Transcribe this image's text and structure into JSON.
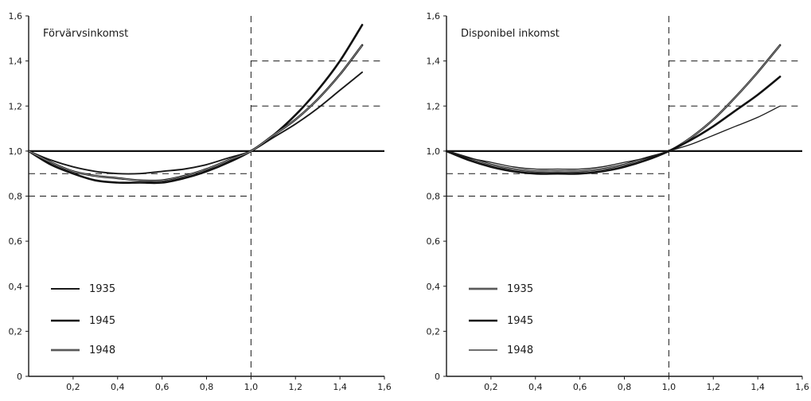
{
  "chart_data": [
    {
      "type": "line",
      "title": "Förvärvsinkomst",
      "xlim": [
        0,
        1.6
      ],
      "ylim": [
        0,
        1.6
      ],
      "x_ticks": [
        "0,2",
        "0,4",
        "0,6",
        "0,8",
        "1,0",
        "1,2",
        "1,4",
        "1,6"
      ],
      "y_ticks": [
        "0",
        "0,2",
        "0,4",
        "0,6",
        "0,8",
        "1,0",
        "1,2",
        "1,4",
        "1,6"
      ],
      "grid": false,
      "reference_lines": {
        "horizontal_solid": 1.0,
        "vertical_dashed": 1.0,
        "dashed_left": [
          0.8,
          0.9
        ],
        "dashed_right": [
          1.2,
          1.4
        ]
      },
      "legend_position": "bottom-left",
      "series": [
        {
          "name": "1935",
          "style": "solid-medium",
          "x": [
            0,
            0.1,
            0.2,
            0.3,
            0.4,
            0.5,
            0.6,
            0.7,
            0.8,
            0.9,
            1.0,
            1.1,
            1.2,
            1.3,
            1.4,
            1.5
          ],
          "y": [
            1.0,
            0.96,
            0.93,
            0.91,
            0.9,
            0.9,
            0.91,
            0.92,
            0.94,
            0.97,
            1.0,
            1.06,
            1.12,
            1.19,
            1.27,
            1.35
          ]
        },
        {
          "name": "1945",
          "style": "solid-thick",
          "x": [
            0,
            0.1,
            0.2,
            0.3,
            0.4,
            0.5,
            0.6,
            0.7,
            0.8,
            0.9,
            1.0,
            1.1,
            1.2,
            1.3,
            1.4,
            1.5
          ],
          "y": [
            1.0,
            0.94,
            0.9,
            0.87,
            0.86,
            0.86,
            0.86,
            0.88,
            0.91,
            0.95,
            1.0,
            1.07,
            1.16,
            1.27,
            1.4,
            1.56
          ]
        },
        {
          "name": "1948",
          "style": "double-line",
          "x": [
            0,
            0.1,
            0.2,
            0.3,
            0.4,
            0.5,
            0.6,
            0.7,
            0.8,
            0.9,
            1.0,
            1.1,
            1.2,
            1.3,
            1.4,
            1.5
          ],
          "y": [
            1.0,
            0.95,
            0.91,
            0.89,
            0.88,
            0.87,
            0.87,
            0.89,
            0.92,
            0.96,
            1.0,
            1.07,
            1.14,
            1.23,
            1.34,
            1.47
          ]
        }
      ]
    },
    {
      "type": "line",
      "title": "Disponibel inkomst",
      "xlim": [
        0,
        1.6
      ],
      "ylim": [
        0,
        1.6
      ],
      "x_ticks": [
        "0,2",
        "0,4",
        "0,6",
        "0,8",
        "1,0",
        "1,2",
        "1,4",
        "1,6"
      ],
      "y_ticks": [
        "0",
        "0,2",
        "0,4",
        "0,6",
        "0,8",
        "1,0",
        "1,2",
        "1,4",
        "1,6"
      ],
      "grid": false,
      "reference_lines": {
        "horizontal_solid": 1.0,
        "vertical_dashed": 1.0,
        "dashed_left": [
          0.8,
          0.9
        ],
        "dashed_right": [
          1.2,
          1.4
        ]
      },
      "legend_position": "bottom-left",
      "series": [
        {
          "name": "1935",
          "style": "double-line",
          "x": [
            0,
            0.1,
            0.2,
            0.3,
            0.4,
            0.5,
            0.6,
            0.7,
            0.8,
            0.9,
            1.0,
            1.1,
            1.2,
            1.3,
            1.4,
            1.5
          ],
          "y": [
            1.0,
            0.97,
            0.94,
            0.92,
            0.91,
            0.91,
            0.91,
            0.92,
            0.94,
            0.97,
            1.0,
            1.06,
            1.14,
            1.24,
            1.35,
            1.47
          ]
        },
        {
          "name": "1945",
          "style": "solid-thick",
          "x": [
            0,
            0.1,
            0.2,
            0.3,
            0.4,
            0.5,
            0.6,
            0.7,
            0.8,
            0.9,
            1.0,
            1.1,
            1.2,
            1.3,
            1.4,
            1.5
          ],
          "y": [
            1.0,
            0.96,
            0.93,
            0.91,
            0.9,
            0.9,
            0.9,
            0.91,
            0.93,
            0.96,
            1.0,
            1.05,
            1.11,
            1.18,
            1.25,
            1.33
          ]
        },
        {
          "name": "1948",
          "style": "solid-thin",
          "x": [
            0,
            0.1,
            0.2,
            0.3,
            0.4,
            0.5,
            0.6,
            0.7,
            0.8,
            0.9,
            1.0,
            1.1,
            1.2,
            1.3,
            1.4,
            1.5
          ],
          "y": [
            1.0,
            0.97,
            0.95,
            0.93,
            0.92,
            0.92,
            0.92,
            0.93,
            0.95,
            0.97,
            1.0,
            1.03,
            1.07,
            1.11,
            1.15,
            1.2
          ]
        }
      ]
    }
  ]
}
